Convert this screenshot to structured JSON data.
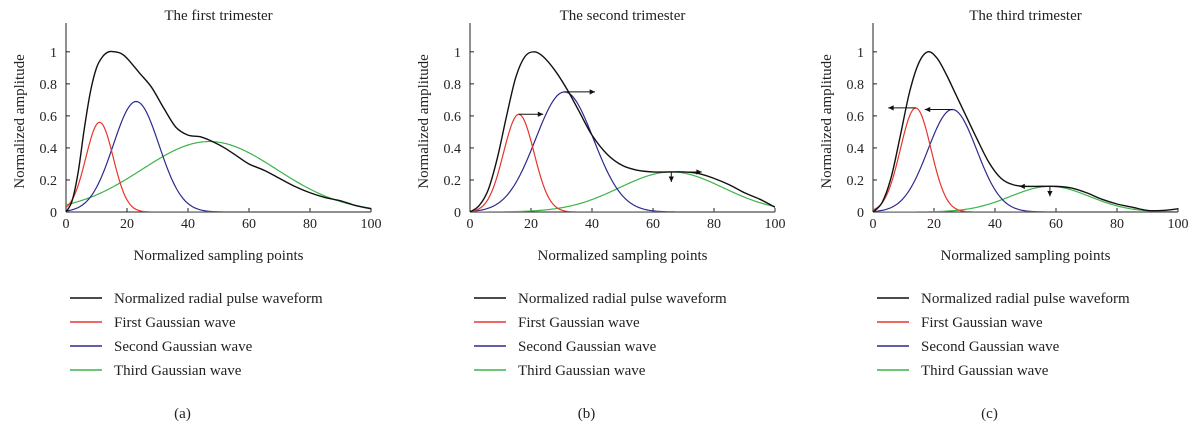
{
  "colors": {
    "waveform": "#111111",
    "first_gaussian": "#e8352b",
    "second_gaussian": "#2b2a8c",
    "third_gaussian": "#3db34a"
  },
  "chart_data": [
    {
      "type": "line",
      "panel": "(a)",
      "title": "The first trimester",
      "xlabel": "Normalized sampling points",
      "ylabel": "Normalized amplitude",
      "xlim": [
        0,
        100
      ],
      "ylim": [
        0,
        1.18
      ],
      "xticks": [
        "0",
        "20",
        "40",
        "60",
        "80",
        "100"
      ],
      "yticks": [
        "0",
        "0.2",
        "0.4",
        "0.6",
        "0.8",
        "1"
      ],
      "legend": [
        "Normalized radial pulse waveform",
        "First Gaussian wave",
        "Second Gaussian wave",
        "Third Gaussian wave"
      ],
      "legend_position": "below",
      "gaussians": [
        {
          "a": 0.56,
          "mu": 11,
          "sigma": 4.5
        },
        {
          "a": 0.69,
          "mu": 23,
          "sigma": 7.5
        },
        {
          "a": 0.44,
          "mu": 47,
          "sigma": 22
        }
      ],
      "series": [
        {
          "name": "Normalized radial pulse waveform",
          "x": [
            0,
            2,
            4,
            6,
            8,
            10,
            12,
            14,
            16,
            18,
            20,
            24,
            28,
            32,
            36,
            40,
            44,
            48,
            52,
            56,
            60,
            65,
            70,
            75,
            80,
            85,
            90,
            95,
            100
          ],
          "y": [
            0,
            0.07,
            0.25,
            0.52,
            0.75,
            0.9,
            0.97,
            1.0,
            1.0,
            0.99,
            0.96,
            0.87,
            0.78,
            0.65,
            0.53,
            0.48,
            0.47,
            0.44,
            0.4,
            0.35,
            0.3,
            0.26,
            0.21,
            0.16,
            0.12,
            0.09,
            0.07,
            0.04,
            0.02
          ]
        },
        {
          "name": "First Gaussian wave",
          "x": [
            0,
            2,
            4,
            6,
            8,
            10,
            11,
            12,
            14,
            16,
            18,
            20,
            22,
            24,
            28,
            100
          ],
          "y": [
            0.03,
            0.08,
            0.17,
            0.3,
            0.45,
            0.55,
            0.56,
            0.55,
            0.45,
            0.3,
            0.17,
            0.08,
            0.03,
            0.01,
            0,
            0
          ]
        },
        {
          "name": "Second Gaussian wave",
          "x": [
            0,
            5,
            10,
            14,
            18,
            21,
            23,
            25,
            28,
            32,
            36,
            40,
            44,
            48,
            52,
            60,
            100
          ],
          "y": [
            0.02,
            0.06,
            0.17,
            0.34,
            0.55,
            0.66,
            0.69,
            0.66,
            0.55,
            0.34,
            0.17,
            0.07,
            0.02,
            0.01,
            0,
            0,
            0
          ]
        },
        {
          "name": "Third Gaussian wave",
          "x": [
            0,
            5,
            10,
            15,
            20,
            25,
            30,
            35,
            40,
            45,
            47,
            50,
            55,
            60,
            65,
            70,
            75,
            80,
            85,
            90,
            95,
            100
          ],
          "y": [
            0.04,
            0.06,
            0.09,
            0.12,
            0.16,
            0.21,
            0.27,
            0.33,
            0.39,
            0.43,
            0.44,
            0.43,
            0.41,
            0.36,
            0.3,
            0.24,
            0.18,
            0.13,
            0.09,
            0.06,
            0.04,
            0.02
          ]
        }
      ]
    },
    {
      "type": "line",
      "panel": "(b)",
      "title": "The second trimester",
      "xlabel": "Normalized sampling points",
      "ylabel": "Normalized amplitude",
      "xlim": [
        0,
        100
      ],
      "ylim": [
        0,
        1.18
      ],
      "xticks": [
        "0",
        "20",
        "40",
        "60",
        "80",
        "100"
      ],
      "yticks": [
        "0",
        "0.2",
        "0.4",
        "0.6",
        "0.8",
        "1"
      ],
      "legend": [
        "Normalized radial pulse waveform",
        "First Gaussian wave",
        "Second Gaussian wave",
        "Third Gaussian wave"
      ],
      "legend_position": "below",
      "gaussians": [
        {
          "a": 0.61,
          "mu": 16,
          "sigma": 5
        },
        {
          "a": 0.75,
          "mu": 31,
          "sigma": 9.5
        },
        {
          "a": 0.25,
          "mu": 66,
          "sigma": 17
        }
      ],
      "series": [
        {
          "name": "Normalized radial pulse waveform",
          "x": [
            0,
            3,
            6,
            9,
            12,
            15,
            18,
            21,
            24,
            28,
            32,
            36,
            40,
            45,
            50,
            55,
            60,
            65,
            70,
            75,
            80,
            85,
            90,
            95,
            100
          ],
          "y": [
            0,
            0.04,
            0.14,
            0.34,
            0.6,
            0.84,
            0.97,
            1.0,
            0.97,
            0.88,
            0.76,
            0.62,
            0.48,
            0.36,
            0.29,
            0.26,
            0.25,
            0.25,
            0.25,
            0.24,
            0.21,
            0.17,
            0.12,
            0.08,
            0.03
          ]
        },
        {
          "name": "First Gaussian wave",
          "x": [
            0,
            4,
            8,
            10,
            12,
            14,
            16,
            18,
            20,
            22,
            24,
            28,
            32,
            36,
            100
          ],
          "y": [
            0.0,
            0.03,
            0.18,
            0.3,
            0.44,
            0.56,
            0.61,
            0.56,
            0.44,
            0.3,
            0.17,
            0.04,
            0.01,
            0,
            0
          ]
        },
        {
          "name": "Second Gaussian wave",
          "x": [
            0,
            5,
            10,
            15,
            20,
            25,
            28,
            31,
            34,
            38,
            42,
            46,
            50,
            55,
            60,
            100
          ],
          "y": [
            0.01,
            0.03,
            0.1,
            0.22,
            0.39,
            0.62,
            0.72,
            0.75,
            0.72,
            0.6,
            0.4,
            0.22,
            0.09,
            0.03,
            0.01,
            0
          ]
        },
        {
          "name": "Third Gaussian wave",
          "x": [
            0,
            10,
            20,
            30,
            40,
            45,
            50,
            55,
            60,
            66,
            70,
            75,
            80,
            85,
            90,
            95,
            100
          ],
          "y": [
            0,
            0,
            0.01,
            0.03,
            0.08,
            0.11,
            0.16,
            0.2,
            0.23,
            0.25,
            0.24,
            0.22,
            0.18,
            0.14,
            0.1,
            0.06,
            0.04
          ]
        }
      ]
    },
    {
      "type": "line",
      "panel": "(c)",
      "title": "The third trimester",
      "xlabel": "Normalized sampling points",
      "ylabel": "Normalized amplitude",
      "xlim": [
        0,
        100
      ],
      "ylim": [
        0,
        1.18
      ],
      "xticks": [
        "0",
        "20",
        "40",
        "60",
        "80",
        "100"
      ],
      "yticks": [
        "0",
        "0.2",
        "0.4",
        "0.6",
        "0.8",
        "1"
      ],
      "legend": [
        "Normalized radial pulse waveform",
        "First Gaussian wave",
        "Second Gaussian wave",
        "Third Gaussian wave"
      ],
      "legend_position": "below",
      "gaussians": [
        {
          "a": 0.65,
          "mu": 14,
          "sigma": 5
        },
        {
          "a": 0.64,
          "mu": 26,
          "sigma": 8
        },
        {
          "a": 0.16,
          "mu": 58,
          "sigma": 13
        }
      ],
      "series": [
        {
          "name": "Normalized radial pulse waveform",
          "x": [
            0,
            3,
            6,
            9,
            12,
            15,
            18,
            21,
            24,
            27,
            30,
            34,
            38,
            42,
            46,
            50,
            55,
            60,
            65,
            70,
            75,
            80,
            85,
            90,
            95,
            100
          ],
          "y": [
            0,
            0.06,
            0.22,
            0.48,
            0.75,
            0.93,
            1.0,
            0.96,
            0.86,
            0.74,
            0.62,
            0.46,
            0.31,
            0.21,
            0.17,
            0.16,
            0.16,
            0.16,
            0.15,
            0.12,
            0.08,
            0.05,
            0.03,
            0.01,
            0.01,
            0.02
          ]
        },
        {
          "name": "First Gaussian wave",
          "x": [
            0,
            4,
            7,
            10,
            12,
            14,
            16,
            18,
            20,
            22,
            25,
            28,
            32,
            100
          ],
          "y": [
            0.01,
            0.1,
            0.25,
            0.47,
            0.59,
            0.65,
            0.6,
            0.47,
            0.32,
            0.19,
            0.06,
            0.01,
            0,
            0
          ]
        },
        {
          "name": "Second Gaussian wave",
          "x": [
            0,
            5,
            10,
            15,
            20,
            23,
            26,
            29,
            32,
            36,
            40,
            44,
            48,
            55,
            100
          ],
          "y": [
            0.01,
            0.05,
            0.15,
            0.31,
            0.48,
            0.59,
            0.64,
            0.59,
            0.48,
            0.31,
            0.16,
            0.06,
            0.02,
            0,
            0
          ]
        },
        {
          "name": "Third Gaussian wave",
          "x": [
            0,
            20,
            30,
            35,
            40,
            45,
            50,
            55,
            58,
            62,
            66,
            70,
            75,
            80,
            85,
            90,
            95,
            100
          ],
          "y": [
            0,
            0,
            0.01,
            0.03,
            0.06,
            0.09,
            0.13,
            0.155,
            0.16,
            0.155,
            0.14,
            0.11,
            0.07,
            0.03,
            0.02,
            0.01,
            0.01,
            0.02
          ]
        }
      ]
    }
  ]
}
